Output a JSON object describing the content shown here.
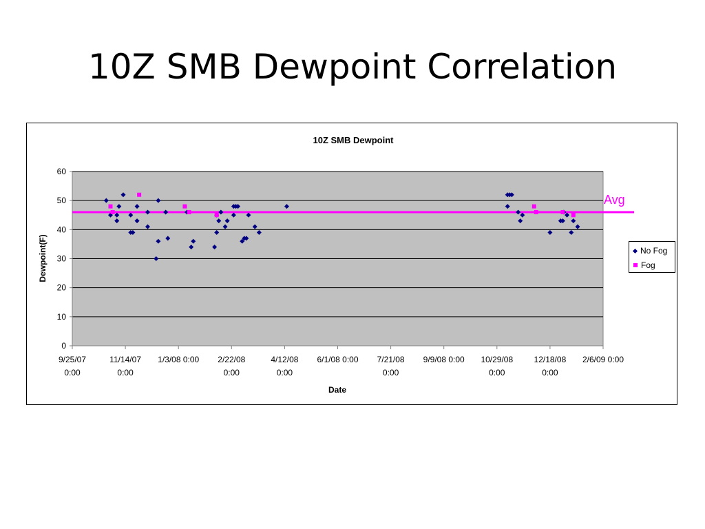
{
  "slide": {
    "title": "10Z SMB Dewpoint Correlation"
  },
  "colors": {
    "no_fog": "#000080",
    "fog": "#FF00FF",
    "avg_line": "#FF00FF",
    "plot_bg": "#C0C0C0"
  },
  "avg_label": "Avg",
  "chart_data": {
    "type": "scatter",
    "title": "10Z SMB Dewpoint",
    "xlabel": "Date",
    "ylabel": "Dewpoint(F)",
    "xlim": [
      "2007-09-25",
      "2009-02-06"
    ],
    "ylim": [
      0,
      60
    ],
    "y_ticks": [
      0,
      10,
      20,
      30,
      40,
      50,
      60
    ],
    "x_ticks": [
      {
        "date": "2007-09-25",
        "line1": "9/25/07",
        "line2": "0:00"
      },
      {
        "date": "2007-11-14",
        "line1": "11/14/07",
        "line2": "0:00"
      },
      {
        "date": "2008-01-03",
        "line1": "1/3/08 0:00",
        "line2": ""
      },
      {
        "date": "2008-02-22",
        "line1": "2/22/08",
        "line2": "0:00"
      },
      {
        "date": "2008-04-12",
        "line1": "4/12/08",
        "line2": "0:00"
      },
      {
        "date": "2008-06-01",
        "line1": "6/1/08 0:00",
        "line2": ""
      },
      {
        "date": "2008-07-21",
        "line1": "7/21/08",
        "line2": "0:00"
      },
      {
        "date": "2008-09-09",
        "line1": "9/9/08 0:00",
        "line2": ""
      },
      {
        "date": "2008-10-29",
        "line1": "10/29/08",
        "line2": "0:00"
      },
      {
        "date": "2008-12-18",
        "line1": "12/18/08",
        "line2": "0:00"
      },
      {
        "date": "2009-02-06",
        "line1": "2/6/09 0:00",
        "line2": ""
      }
    ],
    "grid": "horizontal",
    "legend_position": "right",
    "average": 46,
    "series": [
      {
        "name": "No Fog",
        "marker": "diamond",
        "points": [
          [
            "2007-10-27",
            50
          ],
          [
            "2007-10-31",
            45
          ],
          [
            "2007-11-06",
            43
          ],
          [
            "2007-11-06",
            45
          ],
          [
            "2007-11-08",
            48
          ],
          [
            "2007-11-12",
            52
          ],
          [
            "2007-11-19",
            45
          ],
          [
            "2007-11-19",
            39
          ],
          [
            "2007-11-21",
            39
          ],
          [
            "2007-11-25",
            48
          ],
          [
            "2007-11-25",
            43
          ],
          [
            "2007-12-05",
            41
          ],
          [
            "2007-12-05",
            46
          ],
          [
            "2007-12-13",
            30
          ],
          [
            "2007-12-15",
            36
          ],
          [
            "2007-12-15",
            50
          ],
          [
            "2007-12-22",
            46
          ],
          [
            "2007-12-24",
            37
          ],
          [
            "2008-01-11",
            46
          ],
          [
            "2008-01-15",
            34
          ],
          [
            "2008-01-17",
            36
          ],
          [
            "2008-02-06",
            34
          ],
          [
            "2008-02-08",
            39
          ],
          [
            "2008-02-08",
            45
          ],
          [
            "2008-02-10",
            43
          ],
          [
            "2008-02-12",
            46
          ],
          [
            "2008-02-16",
            41
          ],
          [
            "2008-02-18",
            43
          ],
          [
            "2008-02-24",
            48
          ],
          [
            "2008-02-24",
            45
          ],
          [
            "2008-02-26",
            48
          ],
          [
            "2008-02-28",
            48
          ],
          [
            "2008-03-03",
            36
          ],
          [
            "2008-03-05",
            37
          ],
          [
            "2008-03-07",
            37
          ],
          [
            "2008-03-09",
            45
          ],
          [
            "2008-03-15",
            41
          ],
          [
            "2008-03-19",
            39
          ],
          [
            "2008-04-14",
            48
          ],
          [
            "2008-11-08",
            48
          ],
          [
            "2008-11-08",
            52
          ],
          [
            "2008-11-10",
            52
          ],
          [
            "2008-11-12",
            52
          ],
          [
            "2008-11-18",
            46
          ],
          [
            "2008-11-20",
            43
          ],
          [
            "2008-11-22",
            45
          ],
          [
            "2008-12-18",
            39
          ],
          [
            "2008-12-28",
            43
          ],
          [
            "2008-12-30",
            43
          ],
          [
            "2008-12-31",
            46
          ],
          [
            "2009-01-03",
            45
          ],
          [
            "2009-01-07",
            39
          ],
          [
            "2009-01-09",
            43
          ],
          [
            "2009-01-13",
            41
          ]
        ]
      },
      {
        "name": "Fog",
        "marker": "square",
        "points": [
          [
            "2007-10-31",
            48
          ],
          [
            "2007-11-02",
            46
          ],
          [
            "2007-11-27",
            52
          ],
          [
            "2008-01-09",
            48
          ],
          [
            "2008-01-13",
            46
          ],
          [
            "2008-02-08",
            45
          ],
          [
            "2008-12-03",
            48
          ],
          [
            "2008-12-05",
            46
          ],
          [
            "2008-12-30",
            46
          ],
          [
            "2009-01-09",
            45
          ]
        ]
      }
    ]
  }
}
